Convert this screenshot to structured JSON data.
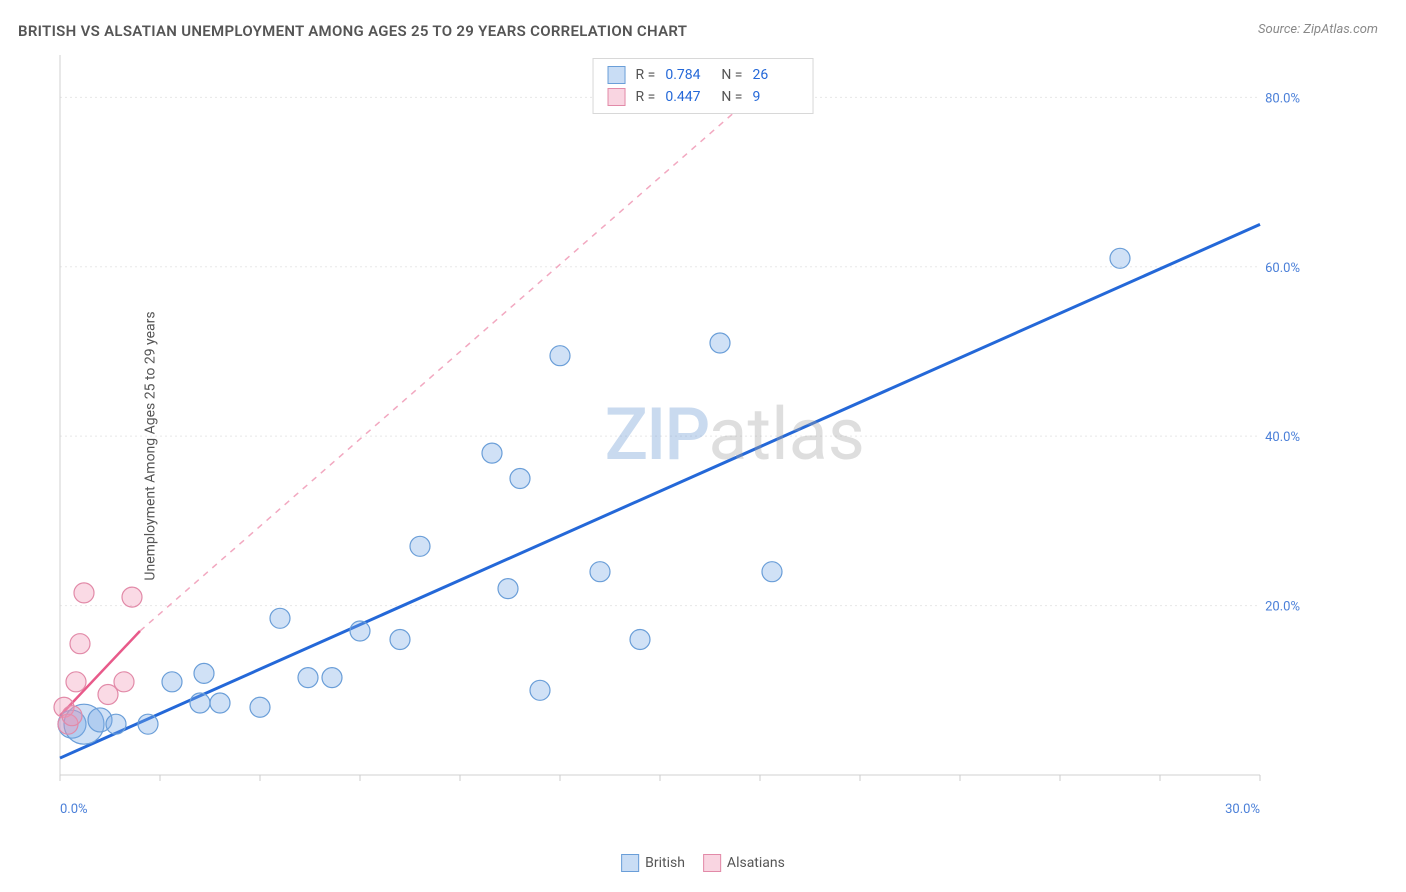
{
  "chart": {
    "title": "BRITISH VS ALSATIAN UNEMPLOYMENT AMONG AGES 25 TO 29 YEARS CORRELATION CHART",
    "source": "Source: ZipAtlas.com",
    "ylabel": "Unemployment Among Ages 25 to 29 years",
    "watermark_zip": "ZIP",
    "watermark_atlas": "atlas",
    "xlim": [
      0,
      30
    ],
    "ylim": [
      0,
      85
    ],
    "x_ticks": [
      0,
      2.5,
      5,
      7.5,
      10,
      12.5,
      15,
      17.5,
      20,
      22.5,
      25,
      27.5,
      30
    ],
    "x_tick_labels": {
      "0": "0.0%",
      "30": "30.0%"
    },
    "y_ticks": [
      20,
      40,
      60,
      80
    ],
    "y_tick_labels": {
      "20": "20.0%",
      "40": "40.0%",
      "60": "60.0%",
      "80": "80.0%"
    },
    "colors": {
      "blue_fill": "rgba(120,170,230,0.35)",
      "blue_stroke": "#6a9ed8",
      "blue_line": "#2468d8",
      "pink_fill": "rgba(240,150,180,0.35)",
      "pink_stroke": "#e28aa8",
      "pink_line": "#e85a8a",
      "pink_dash": "#f2a8c0",
      "tick_text": "#4a7fd8",
      "grid": "#e8e8e8",
      "background": "#ffffff"
    },
    "marker_radius": 10,
    "series": [
      {
        "name": "British",
        "color": "blue",
        "r_label": "R =",
        "r_value": "0.784",
        "n_label": "N =",
        "n_value": "26",
        "trend": {
          "x1": 0,
          "y1": 2,
          "x2": 30,
          "y2": 65
        },
        "points": [
          {
            "x": 0.3,
            "y": 6,
            "r": 14
          },
          {
            "x": 0.6,
            "y": 6,
            "r": 20
          },
          {
            "x": 1.0,
            "y": 6.5,
            "r": 12
          },
          {
            "x": 1.4,
            "y": 6,
            "r": 10
          },
          {
            "x": 2.2,
            "y": 6,
            "r": 10
          },
          {
            "x": 2.8,
            "y": 11,
            "r": 10
          },
          {
            "x": 3.5,
            "y": 8.5,
            "r": 10
          },
          {
            "x": 3.6,
            "y": 12,
            "r": 10
          },
          {
            "x": 4.0,
            "y": 8.5,
            "r": 10
          },
          {
            "x": 5.0,
            "y": 8,
            "r": 10
          },
          {
            "x": 5.5,
            "y": 18.5,
            "r": 10
          },
          {
            "x": 6.2,
            "y": 11.5,
            "r": 10
          },
          {
            "x": 6.8,
            "y": 11.5,
            "r": 10
          },
          {
            "x": 7.5,
            "y": 17,
            "r": 10
          },
          {
            "x": 8.5,
            "y": 16,
            "r": 10
          },
          {
            "x": 9.0,
            "y": 27,
            "r": 10
          },
          {
            "x": 10.8,
            "y": 38,
            "r": 10
          },
          {
            "x": 11.2,
            "y": 22,
            "r": 10
          },
          {
            "x": 11.5,
            "y": 35,
            "r": 10
          },
          {
            "x": 12.0,
            "y": 10,
            "r": 10
          },
          {
            "x": 12.5,
            "y": 49.5,
            "r": 10
          },
          {
            "x": 13.5,
            "y": 24,
            "r": 10
          },
          {
            "x": 14.5,
            "y": 16,
            "r": 10
          },
          {
            "x": 16.5,
            "y": 51,
            "r": 10
          },
          {
            "x": 17.8,
            "y": 24,
            "r": 10
          },
          {
            "x": 26.5,
            "y": 61,
            "r": 10
          }
        ]
      },
      {
        "name": "Alsatians",
        "color": "pink",
        "r_label": "R =",
        "r_value": "0.447",
        "n_label": "N =",
        "n_value": "9",
        "trend": {
          "x1": 0,
          "y1": 7,
          "x2": 2.0,
          "y2": 17
        },
        "trend_dash": {
          "x1": 2.0,
          "y1": 17,
          "x2": 18.5,
          "y2": 85
        },
        "points": [
          {
            "x": 0.1,
            "y": 8,
            "r": 10
          },
          {
            "x": 0.2,
            "y": 6,
            "r": 10
          },
          {
            "x": 0.3,
            "y": 7,
            "r": 10
          },
          {
            "x": 0.4,
            "y": 11,
            "r": 10
          },
          {
            "x": 0.5,
            "y": 15.5,
            "r": 10
          },
          {
            "x": 0.6,
            "y": 21.5,
            "r": 10
          },
          {
            "x": 1.2,
            "y": 9.5,
            "r": 10
          },
          {
            "x": 1.6,
            "y": 11,
            "r": 10
          },
          {
            "x": 1.8,
            "y": 21,
            "r": 10
          }
        ]
      }
    ],
    "legend_bottom": [
      {
        "name": "British",
        "color": "blue"
      },
      {
        "name": "Alsatians",
        "color": "pink"
      }
    ]
  }
}
